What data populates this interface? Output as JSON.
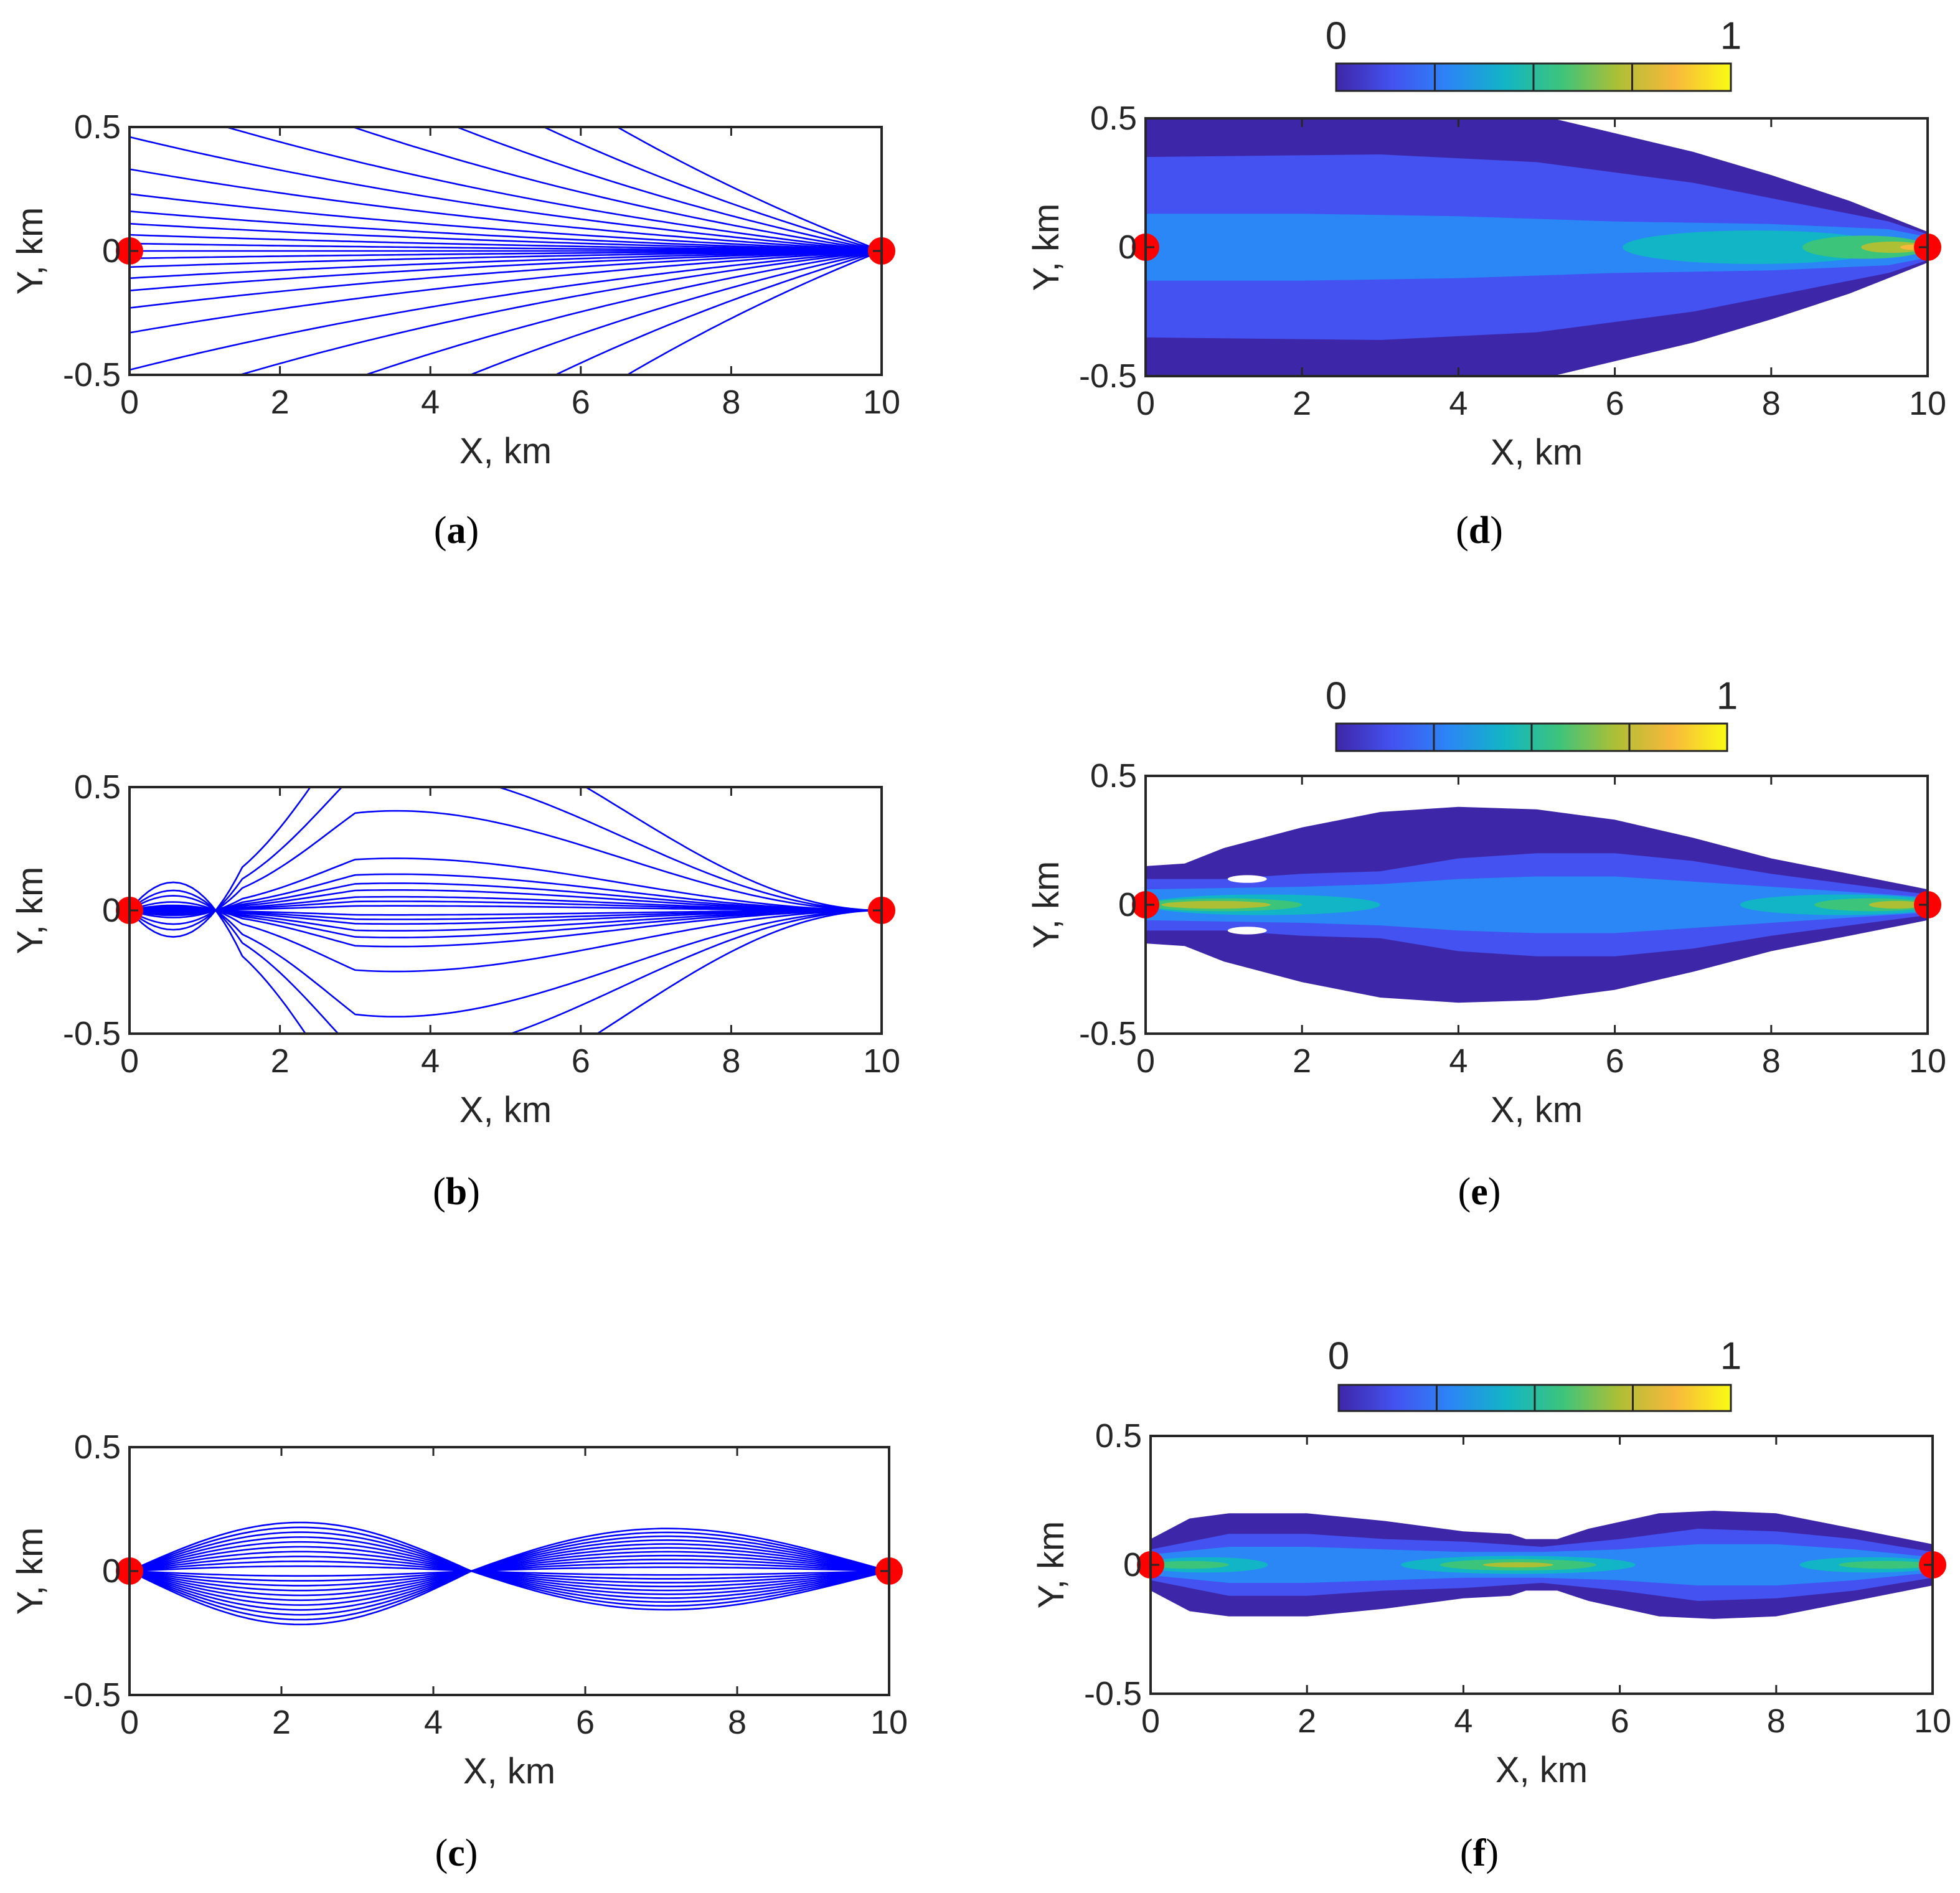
{
  "figure": {
    "ray_color": "#0000ff",
    "marker_color": "#ff0000",
    "axis_color": "#262626"
  },
  "chart_data": [
    {
      "type": "line",
      "panel": "a",
      "caption": "(a)",
      "caption_letter": "a",
      "xlabel": "X, km",
      "ylabel": "Y, km",
      "xlim": [
        0,
        10
      ],
      "ylim": [
        -0.5,
        0.5
      ],
      "xticks": [
        "0",
        "2",
        "4",
        "6",
        "8",
        "10"
      ],
      "yticks": [
        "-0.5",
        "0",
        "0.5"
      ],
      "xtick_values": [
        0,
        2,
        4,
        6,
        8,
        10
      ],
      "ytick_values": [
        -0.5,
        0,
        0.5
      ],
      "ray_model": "diverge",
      "ray_params": [
        0.46,
        0.33,
        0.23,
        0.16,
        0.11,
        0.065,
        0.03,
        0,
        -0.03,
        -0.065,
        -0.11,
        -0.16,
        -0.23,
        -0.33,
        -0.48,
        0.62,
        0.85,
        1.15,
        1.55,
        2.1,
        -0.64,
        -0.88,
        -1.2,
        -1.62,
        -2.2
      ],
      "source": [
        0,
        0
      ],
      "receiver": [
        10,
        0
      ]
    },
    {
      "type": "line",
      "panel": "b",
      "caption": "(b)",
      "caption_letter": "b",
      "xlabel": "X, km",
      "ylabel": "Y, km",
      "xlim": [
        0,
        10
      ],
      "ylim": [
        -0.5,
        0.5
      ],
      "xticks": [
        "0",
        "2",
        "4",
        "6",
        "8",
        "10"
      ],
      "yticks": [
        "-0.5",
        "0",
        "0.5"
      ],
      "xtick_values": [
        0,
        2,
        4,
        6,
        8,
        10
      ],
      "ytick_values": [
        -0.5,
        0,
        0.5
      ],
      "ray_model": "lens",
      "ray_params": [
        0.44,
        0.23,
        0.16,
        0.12,
        0.09,
        0.06,
        0.04,
        0.02,
        -0.02,
        -0.04,
        -0.06,
        -0.09,
        -0.12,
        -0.16,
        -0.27,
        -0.47,
        0.62,
        0.85,
        -0.64,
        -0.9
      ],
      "source": [
        0,
        0
      ],
      "receiver": [
        10,
        0
      ]
    },
    {
      "type": "line",
      "panel": "c",
      "caption": "(c)",
      "caption_letter": "c",
      "xlabel": "X, km",
      "ylabel": "Y, km",
      "xlim": [
        0,
        10
      ],
      "ylim": [
        -0.5,
        0.5
      ],
      "xticks": [
        "0",
        "2",
        "4",
        "6",
        "8",
        "10"
      ],
      "yticks": [
        "-0.5",
        "0",
        "0.5"
      ],
      "xtick_values": [
        0,
        2,
        4,
        6,
        8,
        10
      ],
      "ytick_values": [
        -0.5,
        0,
        0.5
      ],
      "ray_model": "waveguide",
      "ray_params": [
        0.2,
        0.18,
        0.16,
        0.14,
        0.12,
        0.1,
        0.08,
        0.06,
        0.04,
        0.02,
        -0.02,
        -0.04,
        -0.06,
        -0.08,
        -0.1,
        -0.12,
        -0.14,
        -0.16,
        -0.18,
        -0.2,
        -0.22
      ],
      "source": [
        0,
        0
      ],
      "receiver": [
        10,
        0
      ]
    },
    {
      "type": "heatmap",
      "panel": "d",
      "caption": "(d)",
      "caption_letter": "d",
      "xlabel": "X, km",
      "ylabel": "Y, km",
      "xlim": [
        0,
        10
      ],
      "ylim": [
        -0.5,
        0.5
      ],
      "xticks": [
        "0",
        "2",
        "4",
        "6",
        "8",
        "10"
      ],
      "yticks": [
        "-0.5",
        "0",
        "0.5"
      ],
      "xtick_values": [
        0,
        2,
        4,
        6,
        8,
        10
      ],
      "ytick_values": [
        -0.5,
        0,
        0.5
      ],
      "colorbar": {
        "min_label": "0",
        "max_label": "1",
        "range": [
          0,
          1
        ]
      },
      "colormap": [
        "#3e26a8",
        "#4352f0",
        "#2b86f6",
        "#12b5c5",
        "#3dc47b",
        "#adbf35",
        "#f8b83c",
        "#f9fb15"
      ],
      "contour_levels": [
        {
          "level": 1,
          "profile": [
            [
              0,
              0.5
            ],
            [
              5.2,
              0.5
            ],
            [
              7,
              0.37
            ],
            [
              8,
              0.28
            ],
            [
              9,
              0.18
            ],
            [
              10,
              0.06
            ]
          ]
        },
        {
          "level": 2,
          "profile": [
            [
              0,
              0.35
            ],
            [
              3,
              0.36
            ],
            [
              5,
              0.33
            ],
            [
              7,
              0.25
            ],
            [
              8.5,
              0.16
            ],
            [
              9.5,
              0.1
            ],
            [
              10,
              0.05
            ]
          ]
        },
        {
          "level": 3,
          "profile": [
            [
              0,
              0.13
            ],
            [
              2,
              0.13
            ],
            [
              4,
              0.12
            ],
            [
              6,
              0.1
            ],
            [
              8,
              0.09
            ],
            [
              9.5,
              0.07
            ],
            [
              10,
              0.04
            ]
          ]
        },
        {
          "level": 4,
          "ellipse": [
            7.8,
            0,
            1.7,
            0.065
          ]
        },
        {
          "level": 5,
          "ellipse": [
            9.2,
            0,
            0.8,
            0.045
          ]
        },
        {
          "level": 6,
          "ellipse": [
            9.55,
            0,
            0.4,
            0.022
          ]
        },
        {
          "level": 7,
          "ellipse": [
            9.8,
            0,
            0.15,
            0.01
          ]
        }
      ],
      "source": [
        0,
        0
      ],
      "receiver": [
        10,
        0
      ]
    },
    {
      "type": "heatmap",
      "panel": "e",
      "caption": "(e)",
      "caption_letter": "e",
      "xlabel": "X, km",
      "ylabel": "Y, km",
      "xlim": [
        0,
        10
      ],
      "ylim": [
        -0.5,
        0.5
      ],
      "xticks": [
        "0",
        "2",
        "4",
        "6",
        "8",
        "10"
      ],
      "yticks": [
        "-0.5",
        "0",
        "0.5"
      ],
      "xtick_values": [
        0,
        2,
        4,
        6,
        8,
        10
      ],
      "ytick_values": [
        -0.5,
        0,
        0.5
      ],
      "colorbar": {
        "min_label": "0",
        "max_label": "1",
        "range": [
          0,
          1
        ]
      },
      "colormap": [
        "#3e26a8",
        "#4352f0",
        "#2b86f6",
        "#12b5c5",
        "#3dc47b",
        "#adbf35",
        "#f8b83c",
        "#f9fb15"
      ],
      "contour_levels": [
        {
          "level": 1,
          "profile": [
            [
              0,
              0.15
            ],
            [
              0.5,
              0.16
            ],
            [
              1,
              0.22
            ],
            [
              2,
              0.3
            ],
            [
              3,
              0.36
            ],
            [
              4,
              0.38
            ],
            [
              5,
              0.37
            ],
            [
              6,
              0.33
            ],
            [
              7,
              0.26
            ],
            [
              8,
              0.18
            ],
            [
              9,
              0.12
            ],
            [
              10,
              0.06
            ]
          ]
        },
        {
          "level": 2,
          "profile": [
            [
              0,
              0.1
            ],
            [
              1,
              0.1
            ],
            [
              2,
              0.12
            ],
            [
              3,
              0.13
            ],
            [
              4,
              0.18
            ],
            [
              5,
              0.2
            ],
            [
              6,
              0.2
            ],
            [
              7,
              0.17
            ],
            [
              8,
              0.12
            ],
            [
              9,
              0.08
            ],
            [
              10,
              0.04
            ]
          ]
        },
        {
          "level": 3,
          "profile": [
            [
              0,
              0.06
            ],
            [
              2,
              0.07
            ],
            [
              3,
              0.08
            ],
            [
              4,
              0.1
            ],
            [
              5,
              0.11
            ],
            [
              6,
              0.11
            ],
            [
              7,
              0.09
            ],
            [
              8,
              0.07
            ],
            [
              9,
              0.05
            ],
            [
              10,
              0.03
            ]
          ]
        },
        {
          "level": 4,
          "ellipse": [
            1.5,
            0,
            1.5,
            0.04
          ]
        },
        {
          "level": 4,
          "ellipse": [
            8.9,
            0,
            1.3,
            0.04
          ]
        },
        {
          "level": 5,
          "ellipse": [
            1,
            0,
            1,
            0.025
          ]
        },
        {
          "level": 5,
          "ellipse": [
            9.3,
            0,
            0.75,
            0.025
          ]
        },
        {
          "level": 6,
          "ellipse": [
            0.9,
            0,
            0.7,
            0.015
          ]
        },
        {
          "level": 6,
          "ellipse": [
            9.6,
            0,
            0.35,
            0.015
          ]
        }
      ],
      "holes": [
        [
          1.3,
          0.1,
          0.25,
          0.015
        ],
        [
          1.3,
          -0.1,
          0.25,
          0.015
        ]
      ],
      "source": [
        0,
        0
      ],
      "receiver": [
        10,
        0
      ]
    },
    {
      "type": "heatmap",
      "panel": "f",
      "caption": "(f)",
      "caption_letter": "f",
      "xlabel": "X, km",
      "ylabel": "Y, km",
      "xlim": [
        0,
        10
      ],
      "ylim": [
        -0.5,
        0.5
      ],
      "xticks": [
        "0",
        "2",
        "4",
        "6",
        "8",
        "10"
      ],
      "yticks": [
        "-0.5",
        "0",
        "0.5"
      ],
      "xtick_values": [
        0,
        2,
        4,
        6,
        8,
        10
      ],
      "ytick_values": [
        -0.5,
        0,
        0.5
      ],
      "colorbar": {
        "min_label": "0",
        "max_label": "1",
        "range": [
          0,
          1
        ]
      },
      "colormap": [
        "#3e26a8",
        "#4352f0",
        "#2b86f6",
        "#12b5c5",
        "#3dc47b",
        "#adbf35",
        "#f8b83c",
        "#f9fb15"
      ],
      "contour_levels": [
        {
          "level": 1,
          "profile": [
            [
              0,
              0.1
            ],
            [
              0.5,
              0.18
            ],
            [
              1,
              0.2
            ],
            [
              2,
              0.2
            ],
            [
              3,
              0.17
            ],
            [
              4,
              0.13
            ],
            [
              4.6,
              0.12
            ],
            [
              4.8,
              0.1
            ],
            [
              5.2,
              0.1
            ],
            [
              5.6,
              0.14
            ],
            [
              6.5,
              0.2
            ],
            [
              7.2,
              0.21
            ],
            [
              8,
              0.2
            ],
            [
              9,
              0.14
            ],
            [
              10,
              0.08
            ]
          ]
        },
        {
          "level": 2,
          "profile": [
            [
              0,
              0.06
            ],
            [
              1,
              0.12
            ],
            [
              2,
              0.12
            ],
            [
              3,
              0.1
            ],
            [
              4,
              0.09
            ],
            [
              5,
              0.07
            ],
            [
              6,
              0.1
            ],
            [
              7,
              0.14
            ],
            [
              8,
              0.13
            ],
            [
              9,
              0.1
            ],
            [
              10,
              0.05
            ]
          ]
        },
        {
          "level": 3,
          "profile": [
            [
              0,
              0.04
            ],
            [
              1,
              0.07
            ],
            [
              2,
              0.07
            ],
            [
              3,
              0.06
            ],
            [
              4,
              0.05
            ],
            [
              5,
              0.05
            ],
            [
              6,
              0.06
            ],
            [
              7,
              0.08
            ],
            [
              8,
              0.08
            ],
            [
              9,
              0.06
            ],
            [
              10,
              0.03
            ]
          ]
        },
        {
          "level": 4,
          "ellipse": [
            4.7,
            0,
            1.5,
            0.035
          ]
        },
        {
          "level": 4,
          "ellipse": [
            0.7,
            0,
            0.8,
            0.03
          ]
        },
        {
          "level": 4,
          "ellipse": [
            9.2,
            0,
            0.9,
            0.03
          ]
        },
        {
          "level": 5,
          "ellipse": [
            4.7,
            0,
            1,
            0.022
          ]
        },
        {
          "level": 5,
          "ellipse": [
            0.5,
            0,
            0.5,
            0.015
          ]
        },
        {
          "level": 5,
          "ellipse": [
            9.4,
            0,
            0.6,
            0.015
          ]
        },
        {
          "level": 6,
          "ellipse": [
            4.7,
            0,
            0.45,
            0.01
          ]
        }
      ],
      "source": [
        0,
        0
      ],
      "receiver": [
        10,
        0
      ]
    }
  ]
}
